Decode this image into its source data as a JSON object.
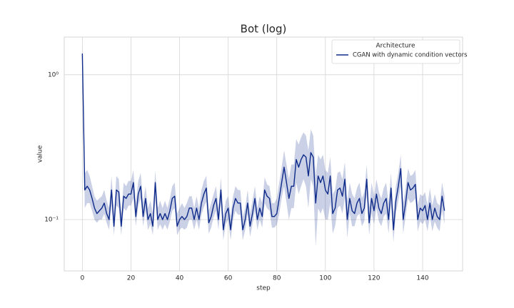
{
  "chart_data": {
    "type": "line",
    "title": "Bot (log)",
    "x_label": "step",
    "y_label": "value",
    "legend_title": "Architecture",
    "legend_position": "upper right",
    "log_y": true,
    "grid": true,
    "xlim": [
      -7.45,
      156.45
    ],
    "ylim": [
      0.0442,
      1.82
    ],
    "xticks": [
      0,
      20,
      40,
      60,
      80,
      100,
      120,
      140
    ],
    "yticks": [
      {
        "value": 0.1,
        "label": "10⁻¹"
      },
      {
        "value": 1,
        "label": "10⁰"
      }
    ],
    "x": [
      0,
      1,
      2,
      3,
      4,
      5,
      6,
      7,
      8,
      9,
      10,
      11,
      12,
      13,
      14,
      15,
      16,
      17,
      18,
      19,
      20,
      21,
      22,
      23,
      24,
      25,
      26,
      27,
      28,
      29,
      30,
      31,
      32,
      33,
      34,
      35,
      36,
      37,
      38,
      39,
      40,
      41,
      42,
      43,
      44,
      45,
      46,
      47,
      48,
      49,
      50,
      51,
      52,
      53,
      54,
      55,
      56,
      57,
      58,
      59,
      60,
      61,
      62,
      63,
      64,
      65,
      66,
      67,
      68,
      69,
      70,
      71,
      72,
      73,
      74,
      75,
      76,
      77,
      78,
      79,
      80,
      81,
      82,
      83,
      84,
      85,
      86,
      87,
      88,
      89,
      90,
      91,
      92,
      93,
      94,
      95,
      96,
      97,
      98,
      99,
      100,
      101,
      102,
      103,
      104,
      105,
      106,
      107,
      108,
      109,
      110,
      111,
      112,
      113,
      114,
      115,
      116,
      117,
      118,
      119,
      120,
      121,
      122,
      123,
      124,
      125,
      126,
      127,
      128,
      129,
      130,
      131,
      132,
      133,
      134,
      135,
      136,
      137,
      138,
      139,
      140,
      141,
      142,
      143,
      144,
      145,
      146,
      147,
      148,
      149
    ],
    "series": [
      {
        "name": "CGAN with dynamic condition vectors",
        "color": "#0d2a8a",
        "values": [
          1.4,
          0.16,
          0.17,
          0.16,
          0.14,
          0.12,
          0.11,
          0.115,
          0.12,
          0.13,
          0.11,
          0.1,
          0.16,
          0.09,
          0.16,
          0.155,
          0.09,
          0.145,
          0.14,
          0.15,
          0.15,
          0.18,
          0.105,
          0.15,
          0.17,
          0.105,
          0.14,
          0.1,
          0.11,
          0.09,
          0.18,
          0.1,
          0.11,
          0.1,
          0.11,
          0.1,
          0.115,
          0.14,
          0.145,
          0.09,
          0.1,
          0.105,
          0.1,
          0.105,
          0.12,
          0.12,
          0.1,
          0.12,
          0.1,
          0.13,
          0.15,
          0.165,
          0.095,
          0.105,
          0.125,
          0.14,
          0.1,
          0.16,
          0.085,
          0.11,
          0.12,
          0.085,
          0.12,
          0.14,
          0.13,
          0.13,
          0.085,
          0.1,
          0.13,
          0.09,
          0.11,
          0.14,
          0.1,
          0.12,
          0.105,
          0.16,
          0.145,
          0.14,
          0.105,
          0.105,
          0.11,
          0.14,
          0.18,
          0.23,
          0.18,
          0.14,
          0.17,
          0.17,
          0.26,
          0.23,
          0.26,
          0.28,
          0.27,
          0.2,
          0.29,
          0.27,
          0.13,
          0.2,
          0.18,
          0.2,
          0.16,
          0.15,
          0.2,
          0.11,
          0.12,
          0.16,
          0.165,
          0.145,
          0.19,
          0.1,
          0.14,
          0.115,
          0.11,
          0.13,
          0.14,
          0.11,
          0.12,
          0.19,
          0.095,
          0.14,
          0.115,
          0.15,
          0.12,
          0.11,
          0.13,
          0.14,
          0.1,
          0.165,
          0.085,
          0.135,
          0.17,
          0.225,
          0.1,
          0.13,
          0.18,
          0.16,
          0.165,
          0.175,
          0.1,
          0.12,
          0.115,
          0.125,
          0.1,
          0.13,
          0.1,
          0.12,
          0.105,
          0.1,
          0.145,
          0.115
        ],
        "lower": [
          1.25,
          0.12,
          0.13,
          0.13,
          0.115,
          0.1,
          0.095,
          0.1,
          0.1,
          0.11,
          0.095,
          0.085,
          0.125,
          0.078,
          0.125,
          0.12,
          0.078,
          0.12,
          0.115,
          0.125,
          0.125,
          0.14,
          0.09,
          0.125,
          0.14,
          0.09,
          0.115,
          0.085,
          0.093,
          0.078,
          0.14,
          0.085,
          0.093,
          0.085,
          0.093,
          0.085,
          0.097,
          0.115,
          0.12,
          0.078,
          0.085,
          0.088,
          0.085,
          0.088,
          0.1,
          0.1,
          0.085,
          0.1,
          0.085,
          0.108,
          0.122,
          0.133,
          0.08,
          0.088,
          0.104,
          0.115,
          0.085,
          0.13,
          0.072,
          0.093,
          0.1,
          0.072,
          0.1,
          0.115,
          0.108,
          0.108,
          0.072,
          0.085,
          0.108,
          0.076,
          0.093,
          0.115,
          0.085,
          0.1,
          0.088,
          0.13,
          0.12,
          0.115,
          0.088,
          0.088,
          0.092,
          0.11,
          0.14,
          0.17,
          0.13,
          0.1,
          0.12,
          0.12,
          0.18,
          0.15,
          0.17,
          0.19,
          0.17,
          0.12,
          0.19,
          0.17,
          0.065,
          0.12,
          0.11,
          0.12,
          0.1,
          0.1,
          0.13,
          0.08,
          0.09,
          0.12,
          0.125,
          0.11,
          0.14,
          0.075,
          0.11,
          0.09,
          0.09,
          0.105,
          0.11,
          0.09,
          0.097,
          0.15,
          0.078,
          0.11,
          0.093,
          0.12,
          0.097,
          0.09,
          0.105,
          0.11,
          0.08,
          0.13,
          0.07,
          0.11,
          0.135,
          0.17,
          0.08,
          0.105,
          0.14,
          0.13,
          0.133,
          0.14,
          0.083,
          0.097,
          0.093,
          0.1,
          0.083,
          0.105,
          0.083,
          0.097,
          0.088,
          0.083,
          0.115,
          0.093
        ],
        "upper": [
          1.6,
          0.21,
          0.22,
          0.2,
          0.17,
          0.145,
          0.135,
          0.14,
          0.145,
          0.16,
          0.135,
          0.12,
          0.2,
          0.11,
          0.2,
          0.19,
          0.11,
          0.18,
          0.17,
          0.185,
          0.185,
          0.22,
          0.13,
          0.185,
          0.21,
          0.13,
          0.17,
          0.12,
          0.135,
          0.11,
          0.22,
          0.12,
          0.135,
          0.12,
          0.135,
          0.12,
          0.14,
          0.17,
          0.18,
          0.11,
          0.12,
          0.13,
          0.12,
          0.13,
          0.145,
          0.145,
          0.12,
          0.145,
          0.12,
          0.16,
          0.185,
          0.2,
          0.115,
          0.13,
          0.15,
          0.17,
          0.12,
          0.195,
          0.105,
          0.135,
          0.145,
          0.105,
          0.145,
          0.17,
          0.16,
          0.16,
          0.105,
          0.12,
          0.16,
          0.11,
          0.135,
          0.17,
          0.12,
          0.145,
          0.13,
          0.195,
          0.175,
          0.17,
          0.13,
          0.13,
          0.14,
          0.18,
          0.23,
          0.3,
          0.24,
          0.19,
          0.24,
          0.24,
          0.36,
          0.33,
          0.37,
          0.4,
          0.38,
          0.3,
          0.42,
          0.38,
          0.2,
          0.28,
          0.26,
          0.28,
          0.22,
          0.21,
          0.27,
          0.15,
          0.16,
          0.21,
          0.215,
          0.19,
          0.25,
          0.135,
          0.18,
          0.15,
          0.14,
          0.165,
          0.18,
          0.14,
          0.155,
          0.24,
          0.12,
          0.18,
          0.145,
          0.19,
          0.155,
          0.14,
          0.165,
          0.18,
          0.13,
          0.21,
          0.11,
          0.17,
          0.21,
          0.28,
          0.13,
          0.165,
          0.225,
          0.2,
          0.205,
          0.22,
          0.125,
          0.15,
          0.145,
          0.155,
          0.125,
          0.165,
          0.125,
          0.15,
          0.13,
          0.125,
          0.18,
          0.145
        ]
      }
    ]
  }
}
